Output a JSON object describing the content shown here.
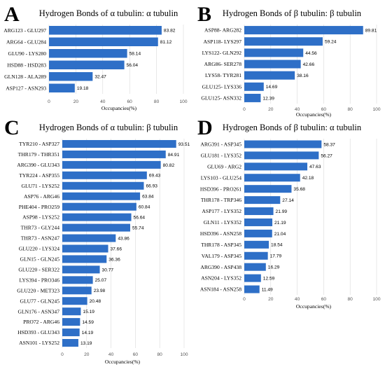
{
  "chart_data": [
    {
      "type": "bar",
      "orientation": "horizontal",
      "panel": "A",
      "title": "Hydrogen Bonds of α tubulin: α tubulin",
      "xlabel": "Occupancies(%)",
      "xlim": [
        0,
        100
      ],
      "xticks": [
        0,
        20,
        40,
        60,
        80,
        100
      ],
      "grid": true,
      "color": "#2e6fc7",
      "categories": [
        "ARG123 - GLU297",
        "ARG64 - GLU284",
        "GLU90 - LYS280",
        "HSD88 - HSD283",
        "GLN128 - ALA289",
        "ASP127 - ASN293"
      ],
      "values": [
        83.82,
        81.12,
        58.14,
        56.04,
        32.47,
        19.18
      ]
    },
    {
      "type": "bar",
      "orientation": "horizontal",
      "panel": "B",
      "title": "Hydrogen Bonds of β tubulin: β tubulin",
      "xlabel": "Occupancies(%)",
      "xlim": [
        0,
        100
      ],
      "xticks": [
        0,
        20,
        40,
        60,
        80,
        100
      ],
      "grid": true,
      "color": "#2e6fc7",
      "categories": [
        "ASP88- ARG282",
        "ASP118- LYS297",
        "LYS122- GLN292",
        "ARG86- SER278",
        "LYS58- TYR281",
        "GLU125- LYS336",
        "GLU125- ASN332"
      ],
      "values": [
        89.81,
        59.24,
        44.56,
        42.66,
        38.16,
        14.69,
        12.39
      ]
    },
    {
      "type": "bar",
      "orientation": "horizontal",
      "panel": "C",
      "title": "Hydrogen Bonds of α tubulin: β tubulin",
      "xlabel": "Occupancies(%)",
      "xlim": [
        0,
        100
      ],
      "xticks": [
        0,
        20,
        40,
        60,
        80,
        100
      ],
      "grid": true,
      "color": "#2e6fc7",
      "categories": [
        "TYR210 - ASP327",
        "THR179 - THR351",
        "ARG390 - GLU343",
        "TYR224 - ASP355",
        "GLU71 - LYS252",
        "ASP76 - ARG46",
        "PHE404 - PRO259",
        "ASP98 - LYS252",
        "THR73 - GLY244",
        "THR73 - ASN247",
        "GLU220 - LYS324",
        "GLN15 - GLN245",
        "GLU220 - SER322",
        "LYS394 - PRO346",
        "GLU220 - MET323",
        "GLU77 - GLN245",
        "GLN176 - ASN347",
        "PRO72 - ARG46",
        "HSD393 - GLU343",
        "ASN101 - LYS252"
      ],
      "values": [
        93.51,
        84.91,
        80.82,
        69.43,
        66.93,
        63.84,
        60.84,
        56.64,
        55.74,
        43.86,
        37.66,
        36.36,
        30.77,
        25.07,
        23.98,
        20.48,
        15.19,
        14.59,
        14.19,
        13.19
      ]
    },
    {
      "type": "bar",
      "orientation": "horizontal",
      "panel": "D",
      "title": "Hydrogen Bonds of β tubulin: α tubulin",
      "xlabel": "Occupancies(%)",
      "xlim": [
        0,
        100
      ],
      "xticks": [
        0,
        20,
        40,
        60,
        80,
        100
      ],
      "grid": true,
      "color": "#2e6fc7",
      "categories": [
        "ARG391 - ASP345",
        "GLU181 - LYS352",
        "GLU69 - ARG2",
        "LYS103 - GLU254",
        "HSD396 - PRO261",
        "THR178 - TRP346",
        "ASP177 - LYS352",
        "GLN11 - LYS352",
        "HSD396 - ASN258",
        "THR178 - ASP345",
        "VAL179 - ASP345",
        "ARG390 - ASP438",
        "ASN204 - LYS352",
        "ASN184 - ASN258"
      ],
      "values": [
        58.37,
        56.27,
        47.63,
        42.18,
        35.68,
        27.14,
        21.99,
        21.19,
        21.04,
        18.54,
        17.79,
        16.29,
        12.59,
        11.49
      ]
    }
  ]
}
